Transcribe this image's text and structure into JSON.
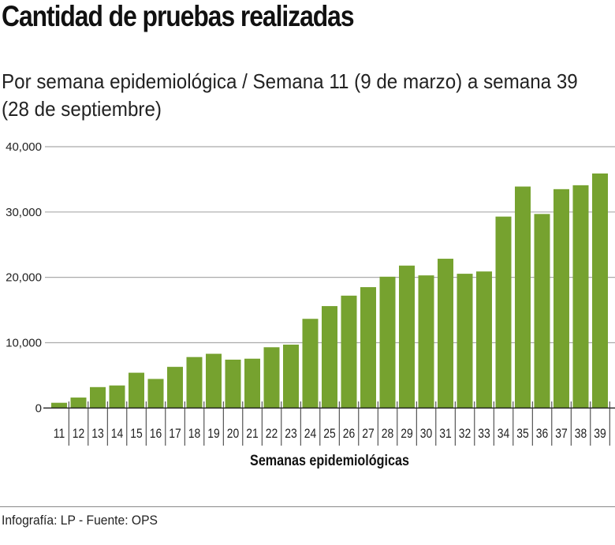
{
  "chart_data": {
    "type": "bar",
    "title": "Cantidad de pruebas realizadas",
    "subtitle": "Por semana epidemiológica / Semana 11 (9 de marzo) a semana 39 (28 de septiembre)",
    "xlabel": "Semanas epidemiológicas",
    "ylabel": "",
    "ylim": [
      0,
      40000
    ],
    "yticks": [
      "0",
      "10,000",
      "20,000",
      "30,000",
      "40,000"
    ],
    "grid": true,
    "bar_color": "#76a22f",
    "categories": [
      "11",
      "12",
      "13",
      "14",
      "15",
      "16",
      "17",
      "18",
      "19",
      "20",
      "21",
      "22",
      "23",
      "24",
      "25",
      "26",
      "27",
      "28",
      "29",
      "30",
      "31",
      "32",
      "33",
      "34",
      "35",
      "36",
      "37",
      "38",
      "39"
    ],
    "values": [
      800,
      1600,
      3200,
      3450,
      5400,
      4450,
      6300,
      7800,
      8300,
      7400,
      7550,
      9300,
      9700,
      13650,
      15600,
      17200,
      18500,
      20100,
      21800,
      20300,
      22850,
      20550,
      20900,
      29300,
      33900,
      29700,
      33500,
      34100,
      35900
    ]
  },
  "footer": "Infografía: LP - Fuente: OPS"
}
